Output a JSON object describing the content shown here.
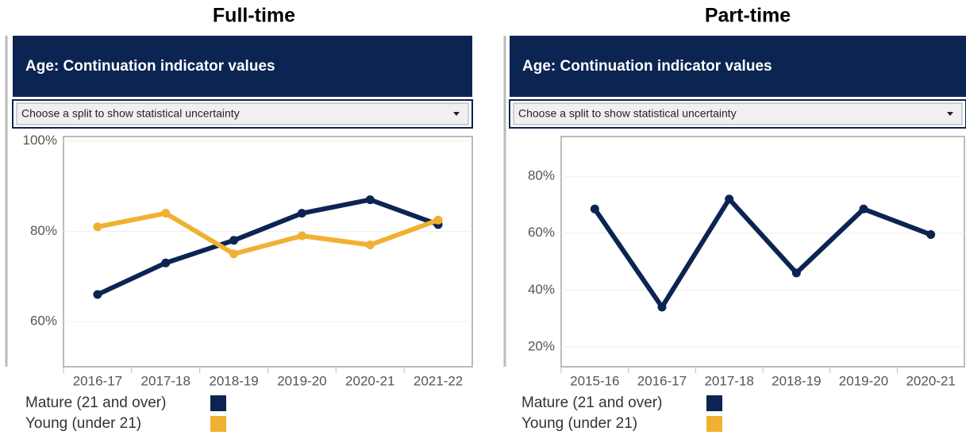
{
  "chart_data": [
    {
      "type": "line",
      "title": "Full-time",
      "header": "Age: Continuation indicator values",
      "dropdown": "Choose a split to show statistical uncertainty",
      "categories": [
        "2016-17",
        "2017-18",
        "2018-19",
        "2019-20",
        "2020-21",
        "2021-22"
      ],
      "series": [
        {
          "name": "Mature (21 and over)",
          "color": "#0c2452",
          "values": [
            66,
            73,
            78,
            84,
            87,
            81.5
          ]
        },
        {
          "name": "Young (under 21)",
          "color": "#f0b132",
          "values": [
            81,
            84,
            75,
            79,
            77,
            82.5
          ]
        }
      ],
      "ylim": [
        50,
        101
      ],
      "yticks": [
        {
          "value": 60,
          "label": "60%"
        },
        {
          "value": 80,
          "label": "80%"
        },
        {
          "value": 100,
          "label": "100%"
        }
      ],
      "grid": true
    },
    {
      "type": "line",
      "title": "Part-time",
      "header": "Age: Continuation indicator values",
      "dropdown": "Choose a split to show statistical uncertainty",
      "categories": [
        "2015-16",
        "2016-17",
        "2017-18",
        "2018-19",
        "2019-20",
        "2020-21"
      ],
      "series": [
        {
          "name": "Mature (21 and over)",
          "color": "#0c2452",
          "values": [
            68.5,
            34,
            72,
            46,
            68.5,
            59.5
          ]
        },
        {
          "name": "Young (under 21)",
          "color": "#f0b132",
          "values": [
            null,
            null,
            null,
            null,
            null,
            null
          ]
        }
      ],
      "ylim": [
        13,
        94
      ],
      "yticks": [
        {
          "value": 20,
          "label": "20%"
        },
        {
          "value": 40,
          "label": "40%"
        },
        {
          "value": 60,
          "label": "60%"
        },
        {
          "value": 80,
          "label": "80%"
        }
      ],
      "grid": true
    }
  ]
}
